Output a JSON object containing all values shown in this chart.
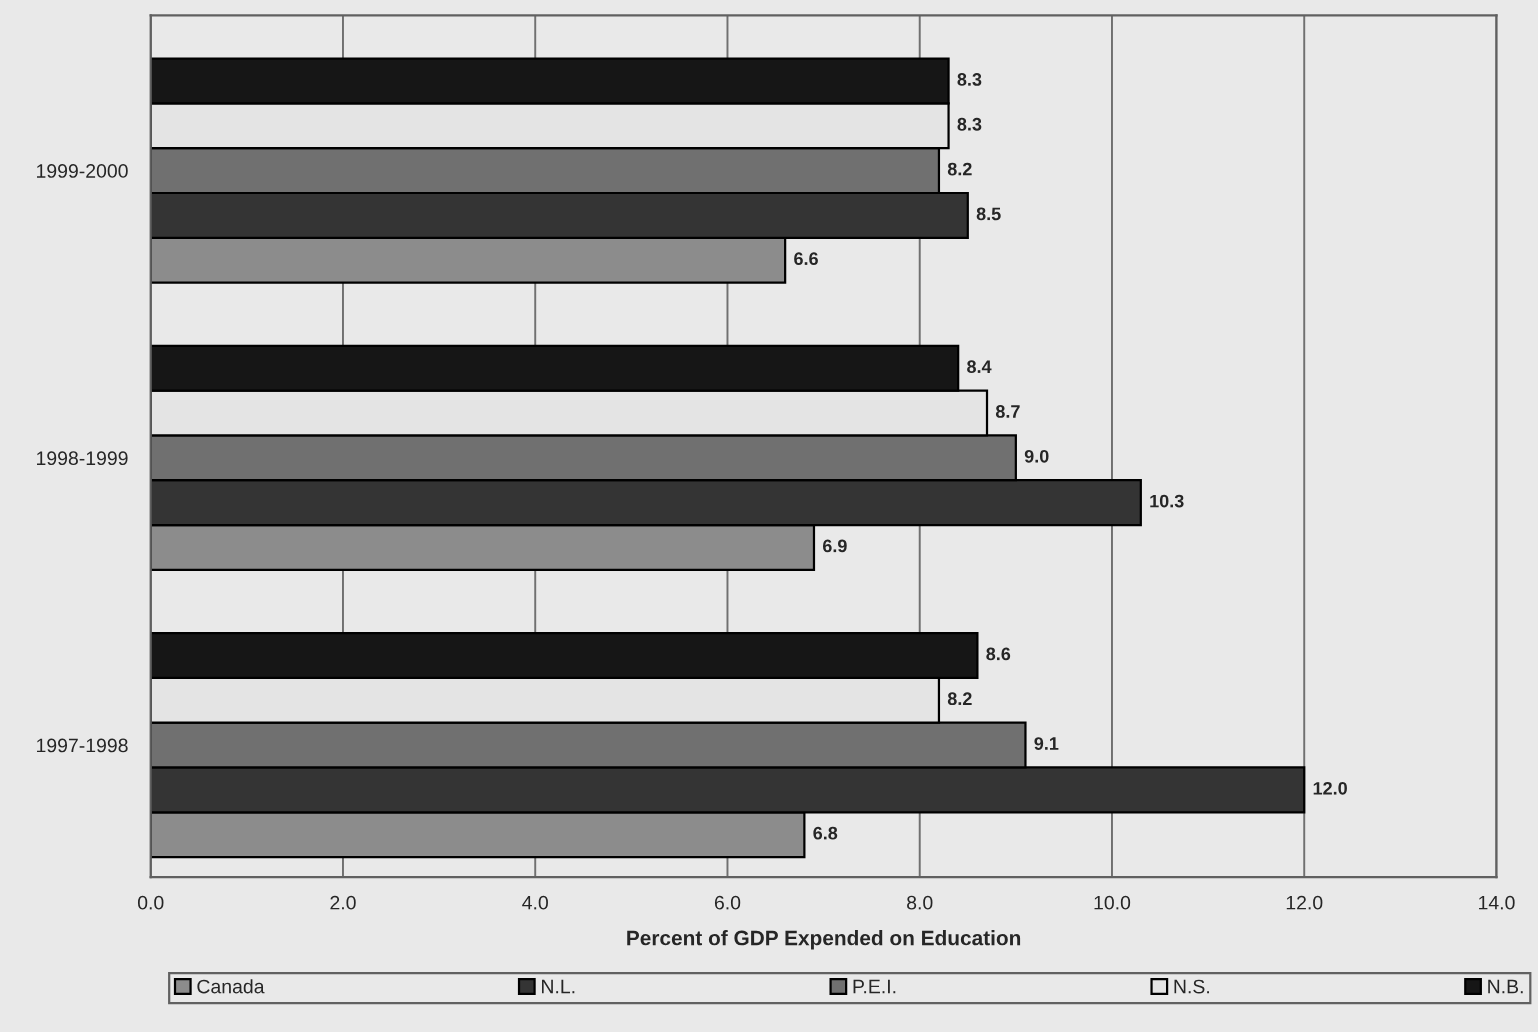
{
  "chart_data": {
    "type": "bar",
    "orientation": "horizontal",
    "xlabel": "Percent of GDP Expended on Education",
    "categories": [
      "1999-2000",
      "1998-1999",
      "1997-1998"
    ],
    "series": [
      {
        "name": "Canada",
        "color": "#8c8c8c",
        "values": [
          6.6,
          6.9,
          6.8
        ],
        "value_labels": [
          "6.6",
          "6.9",
          "6.8"
        ]
      },
      {
        "name": "N.L.",
        "color": "#343434",
        "values": [
          8.5,
          10.3,
          12.0
        ],
        "value_labels": [
          "8.5",
          "10.3",
          "12.0"
        ]
      },
      {
        "name": "P.E.I.",
        "color": "#707070",
        "values": [
          8.2,
          9.0,
          9.1
        ],
        "value_labels": [
          "8.2",
          "9.0",
          "9.1"
        ]
      },
      {
        "name": "N.S.",
        "color": "#e4e4e4",
        "values": [
          8.3,
          8.7,
          8.2
        ],
        "value_labels": [
          "8.3",
          "8.7",
          "8.2"
        ]
      },
      {
        "name": "N.B.",
        "color": "#161616",
        "values": [
          8.3,
          8.4,
          8.6
        ],
        "value_labels": [
          "8.3",
          "8.4",
          "8.6"
        ]
      }
    ],
    "xlim": [
      0,
      14
    ],
    "xticks": [
      {
        "value": 0,
        "label": "0.0"
      },
      {
        "value": 2,
        "label": "2.0"
      },
      {
        "value": 4,
        "label": "4.0"
      },
      {
        "value": 6,
        "label": "6.0"
      },
      {
        "value": 8,
        "label": "8.0"
      },
      {
        "value": 10,
        "label": "10.0"
      },
      {
        "value": 12,
        "label": "12.0"
      },
      {
        "value": 14,
        "label": "14.0"
      }
    ],
    "grid": "x",
    "legend": "bottom"
  }
}
